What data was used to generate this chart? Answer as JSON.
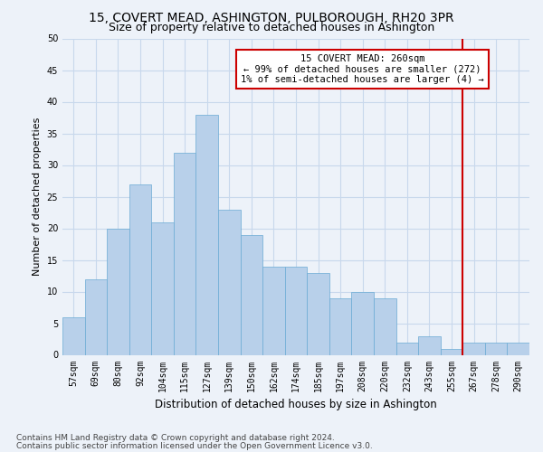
{
  "title1": "15, COVERT MEAD, ASHINGTON, PULBOROUGH, RH20 3PR",
  "title2": "Size of property relative to detached houses in Ashington",
  "xlabel": "Distribution of detached houses by size in Ashington",
  "ylabel": "Number of detached properties",
  "categories": [
    "57sqm",
    "69sqm",
    "80sqm",
    "92sqm",
    "104sqm",
    "115sqm",
    "127sqm",
    "139sqm",
    "150sqm",
    "162sqm",
    "174sqm",
    "185sqm",
    "197sqm",
    "208sqm",
    "220sqm",
    "232sqm",
    "243sqm",
    "255sqm",
    "267sqm",
    "278sqm",
    "290sqm"
  ],
  "values": [
    6,
    12,
    20,
    27,
    21,
    32,
    38,
    23,
    19,
    14,
    14,
    13,
    9,
    10,
    9,
    2,
    3,
    1,
    2,
    2,
    2
  ],
  "bar_color": "#b8d0ea",
  "bar_edge_color": "#6aaad4",
  "grid_color": "#c8d8ec",
  "annotation_text": "15 COVERT MEAD: 260sqm\n← 99% of detached houses are smaller (272)\n1% of semi-detached houses are larger (4) →",
  "annotation_box_color": "#ffffff",
  "annotation_box_edge": "#cc0000",
  "vline_x": 17.5,
  "vline_color": "#cc0000",
  "ylim": [
    0,
    50
  ],
  "yticks": [
    0,
    5,
    10,
    15,
    20,
    25,
    30,
    35,
    40,
    45,
    50
  ],
  "footer1": "Contains HM Land Registry data © Crown copyright and database right 2024.",
  "footer2": "Contains public sector information licensed under the Open Government Licence v3.0.",
  "bg_color": "#edf2f9",
  "title1_fontsize": 10,
  "title2_fontsize": 9,
  "xlabel_fontsize": 8.5,
  "ylabel_fontsize": 8,
  "tick_fontsize": 7,
  "ann_fontsize": 7.5,
  "footer_fontsize": 6.5
}
